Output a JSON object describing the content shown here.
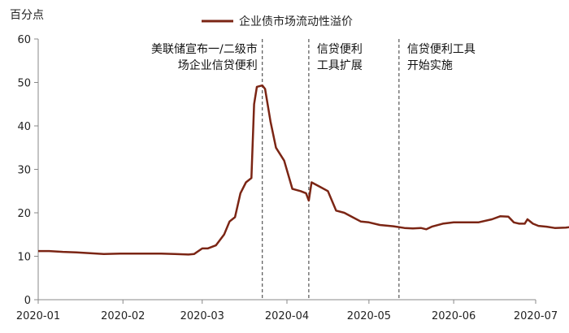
{
  "chart_data": {
    "type": "line",
    "unit_label": "百分点",
    "legend_label": "企业债市场流动性溢价",
    "legend_position": "top-center",
    "ylim": [
      0,
      60
    ],
    "yticks": [
      "0",
      "10",
      "20",
      "30",
      "40",
      "50",
      "60"
    ],
    "xticks": [
      "2020-01",
      "2020-02",
      "2020-03",
      "2020-04",
      "2020-05",
      "2020-06",
      "2020-07"
    ],
    "grid": false,
    "line_color": "#7b2514",
    "series": [
      {
        "values": [
          [
            "2020-01-01",
            11.2
          ],
          [
            "2020-01-05",
            11.2
          ],
          [
            "2020-01-10",
            11.0
          ],
          [
            "2020-01-15",
            10.9
          ],
          [
            "2020-01-20",
            10.7
          ],
          [
            "2020-01-25",
            10.5
          ],
          [
            "2020-01-31",
            10.6
          ],
          [
            "2020-02-05",
            10.6
          ],
          [
            "2020-02-10",
            10.6
          ],
          [
            "2020-02-15",
            10.6
          ],
          [
            "2020-02-20",
            10.5
          ],
          [
            "2020-02-25",
            10.4
          ],
          [
            "2020-02-27",
            10.5
          ],
          [
            "2020-03-01",
            11.8
          ],
          [
            "2020-03-03",
            11.8
          ],
          [
            "2020-03-06",
            12.5
          ],
          [
            "2020-03-09",
            15.0
          ],
          [
            "2020-03-11",
            18.0
          ],
          [
            "2020-03-13",
            19.0
          ],
          [
            "2020-03-15",
            24.5
          ],
          [
            "2020-03-17",
            27.0
          ],
          [
            "2020-03-19",
            28.0
          ],
          [
            "2020-03-20",
            45.0
          ],
          [
            "2020-03-21",
            49.0
          ],
          [
            "2020-03-23",
            49.3
          ],
          [
            "2020-03-24",
            48.5
          ],
          [
            "2020-03-26",
            41.0
          ],
          [
            "2020-03-28",
            35.0
          ],
          [
            "2020-03-31",
            32.0
          ],
          [
            "2020-04-03",
            25.5
          ],
          [
            "2020-04-06",
            25.0
          ],
          [
            "2020-04-08",
            24.5
          ],
          [
            "2020-04-09",
            22.8
          ],
          [
            "2020-04-10",
            27.0
          ],
          [
            "2020-04-13",
            26.0
          ],
          [
            "2020-04-16",
            25.0
          ],
          [
            "2020-04-19",
            20.5
          ],
          [
            "2020-04-22",
            20.0
          ],
          [
            "2020-04-25",
            19.0
          ],
          [
            "2020-04-28",
            18.0
          ],
          [
            "2020-05-01",
            17.8
          ],
          [
            "2020-05-05",
            17.2
          ],
          [
            "2020-05-10",
            16.9
          ],
          [
            "2020-05-14",
            16.5
          ],
          [
            "2020-05-17",
            16.4
          ],
          [
            "2020-05-20",
            16.5
          ],
          [
            "2020-05-22",
            16.2
          ],
          [
            "2020-05-24",
            16.8
          ],
          [
            "2020-05-28",
            17.5
          ],
          [
            "2020-06-01",
            17.8
          ],
          [
            "2020-06-05",
            17.8
          ],
          [
            "2020-06-10",
            17.8
          ],
          [
            "2020-06-15",
            18.5
          ],
          [
            "2020-06-18",
            19.2
          ],
          [
            "2020-06-21",
            19.1
          ],
          [
            "2020-06-23",
            17.8
          ],
          [
            "2020-06-25",
            17.5
          ],
          [
            "2020-06-27",
            17.5
          ],
          [
            "2020-06-28",
            18.5
          ],
          [
            "2020-06-30",
            17.5
          ],
          [
            "2020-07-02",
            17.0
          ],
          [
            "2020-07-05",
            16.8
          ],
          [
            "2020-07-08",
            16.5
          ],
          [
            "2020-07-12",
            16.6
          ],
          [
            "2020-07-15",
            16.8
          ]
        ]
      }
    ],
    "annotations": [
      {
        "date": "2020-03-23",
        "lines": [
          "美联储宣布一/二级市",
          "场企业信贷便利"
        ]
      },
      {
        "date": "2020-04-09",
        "lines": [
          "信贷便利",
          "工具扩展"
        ]
      },
      {
        "date": "2020-05-12",
        "lines": [
          "信贷便利工具",
          "开始实施"
        ]
      }
    ]
  }
}
